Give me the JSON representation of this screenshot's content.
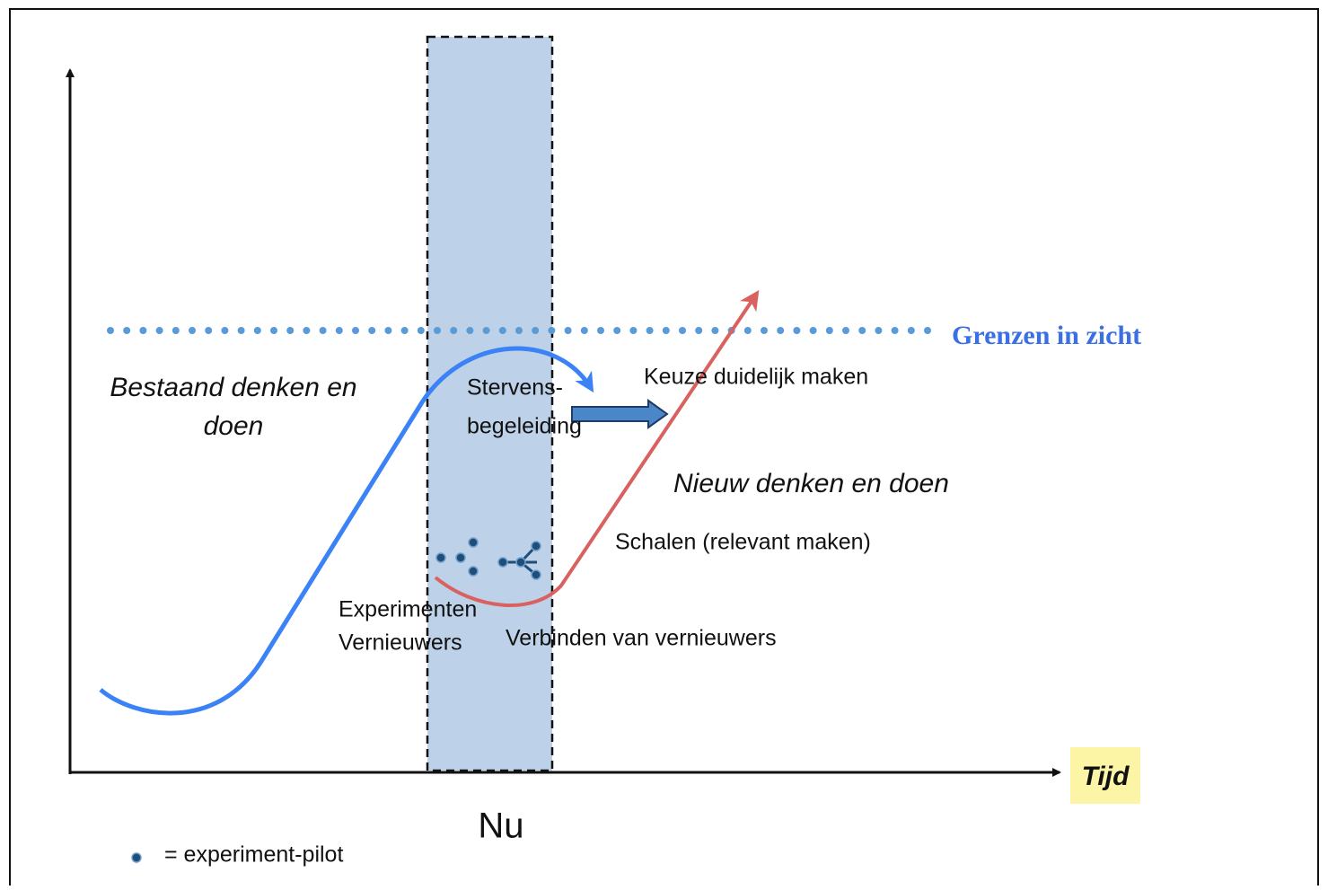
{
  "axes": {
    "x_label": "Tijd",
    "now_label": "Nu"
  },
  "threshold": {
    "label": "Grenzen in zicht"
  },
  "existing_curve": {
    "label_lines": [
      "Bestaand denken en",
      "doen"
    ],
    "end_label_lines": [
      "Stervens-",
      "begeleiding"
    ]
  },
  "new_curve": {
    "label": "Nieuw denken en doen",
    "start_label_lines": [
      "Experimenten",
      "Vernieuwers"
    ],
    "connect_label": "Verbinden van vernieuwers",
    "scale_label": "Schalen (relevant maken)",
    "choice_label": "Keuze duidelijk maken"
  },
  "legend": {
    "label": "= experiment-pilot"
  }
}
